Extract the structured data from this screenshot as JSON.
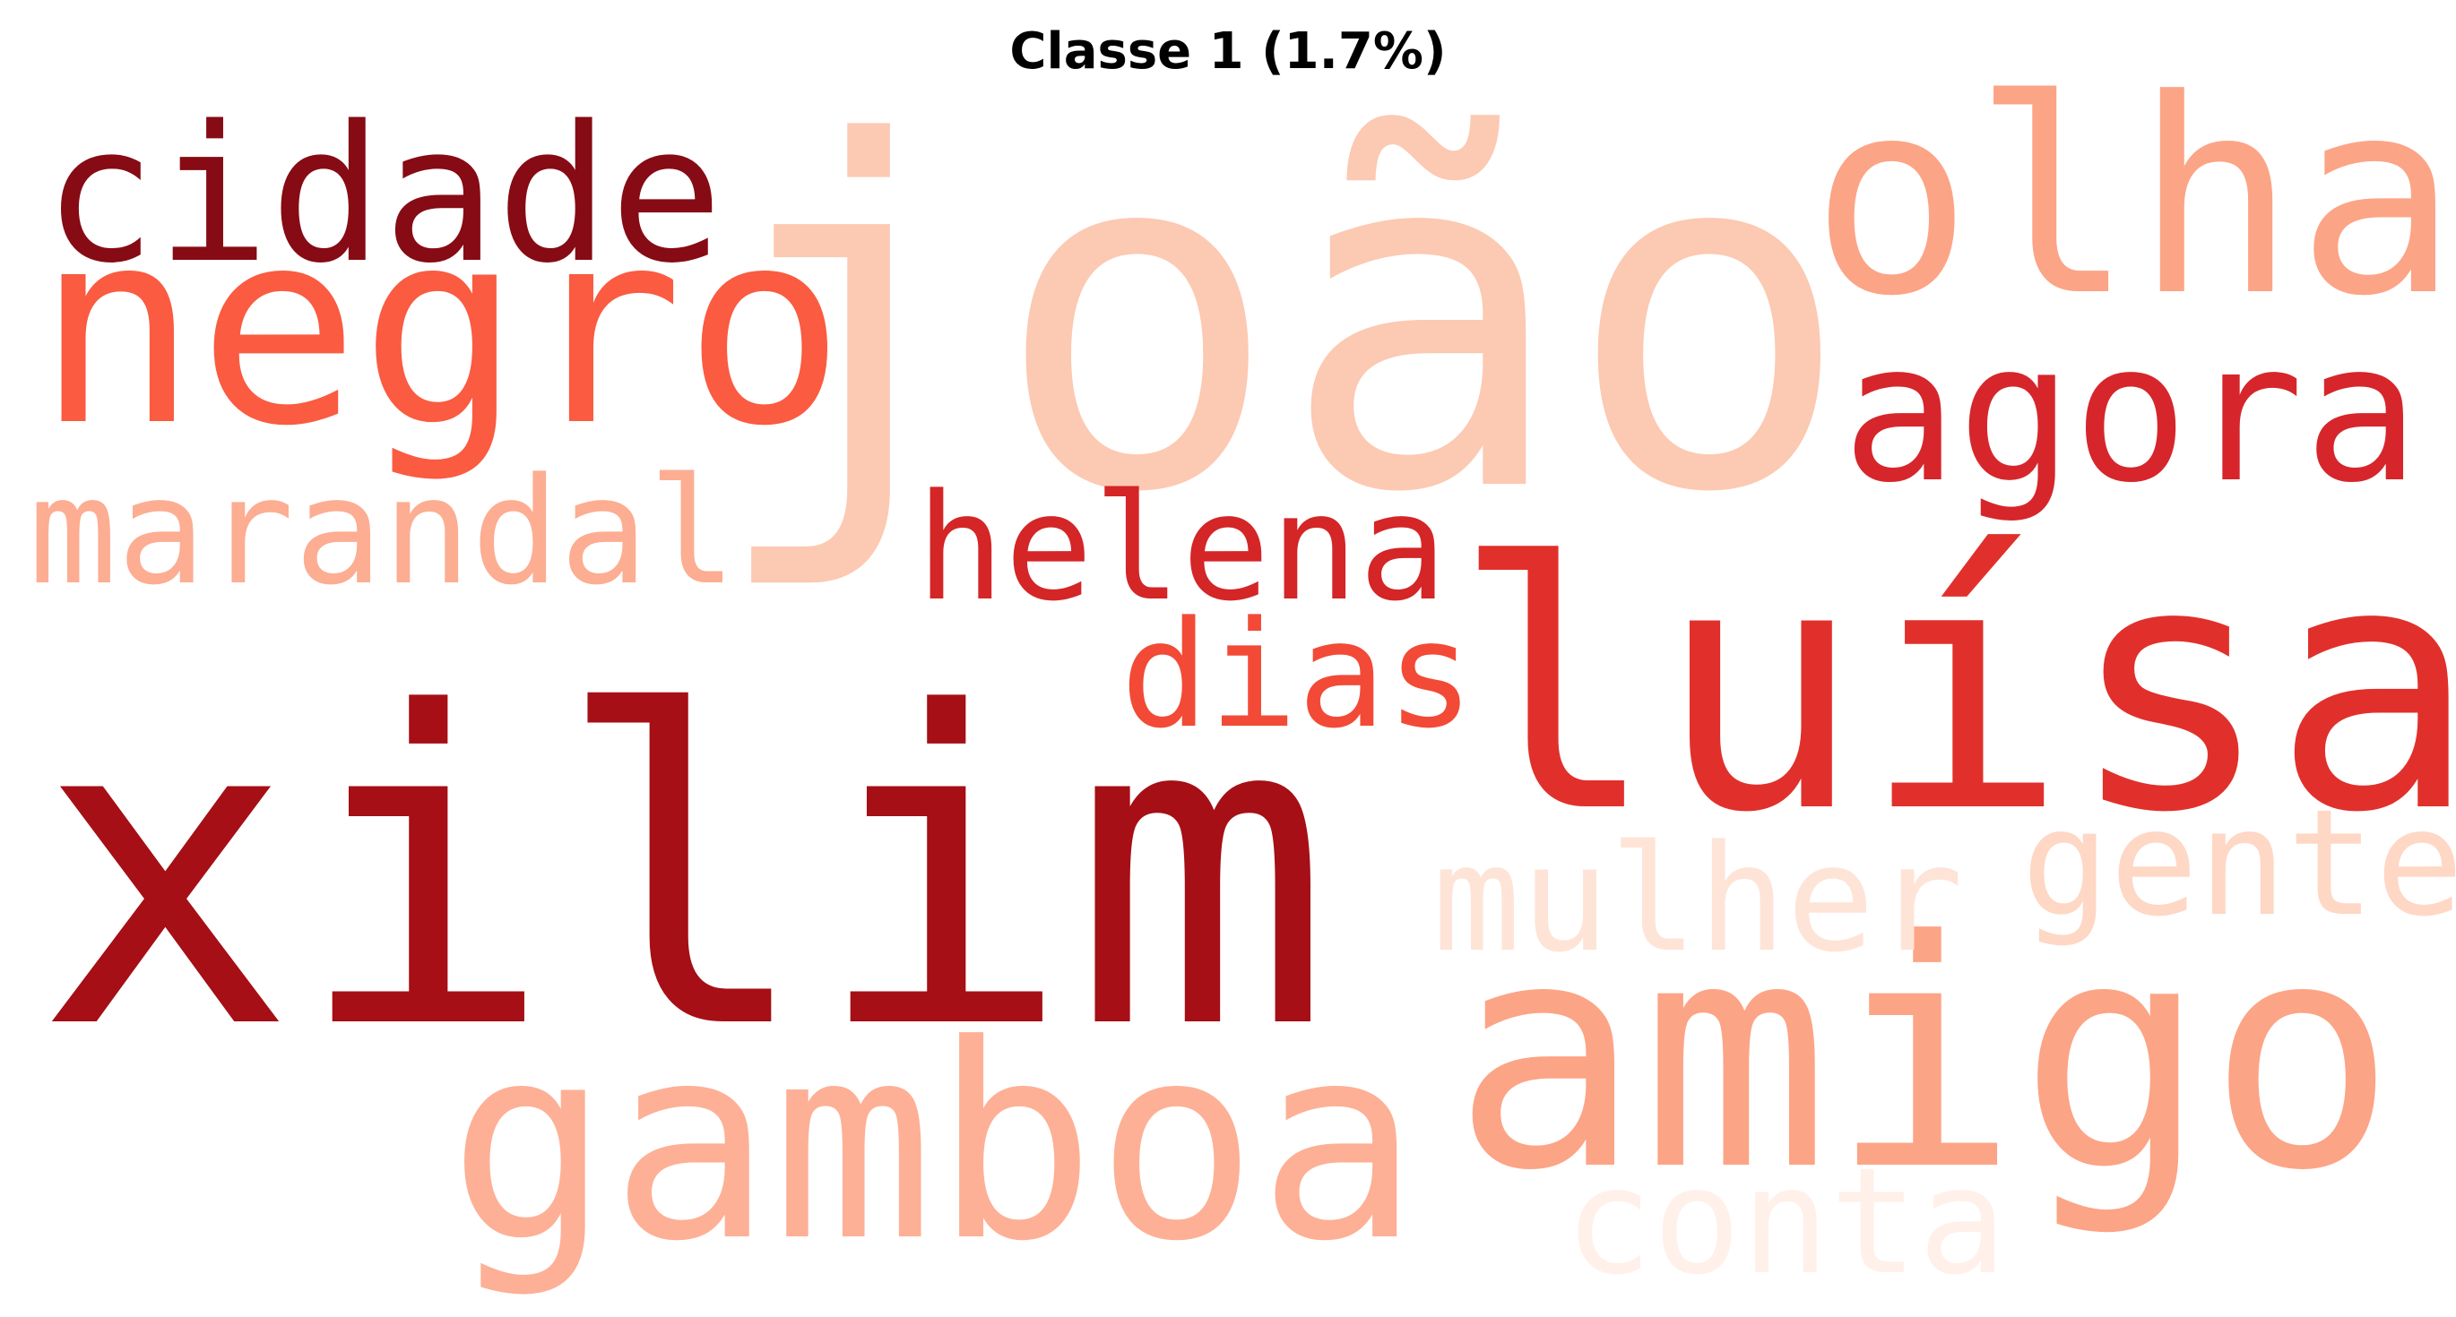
{
  "title": "Classe 1 (1.7%)",
  "words": [
    {
      "text": "joão",
      "color": "#fcc9b2"
    },
    {
      "text": "xilim",
      "color": "#a50f15"
    },
    {
      "text": "luísa",
      "color": "#e1302b"
    },
    {
      "text": "amigo",
      "color": "#fca486"
    },
    {
      "text": "gamboa",
      "color": "#fdb095"
    },
    {
      "text": "negro",
      "color": "#fa5b41"
    },
    {
      "text": "olha",
      "color": "#fca486"
    },
    {
      "text": "agora",
      "color": "#d6262b"
    },
    {
      "text": "cidade",
      "color": "#860b14"
    },
    {
      "text": "helena",
      "color": "#d42527"
    },
    {
      "text": "marandal",
      "color": "#fcad92"
    },
    {
      "text": "dias",
      "color": "#f24a36"
    },
    {
      "text": "mulher",
      "color": "#fee4d7"
    },
    {
      "text": "gente",
      "color": "#fed7c5"
    },
    {
      "text": "conta",
      "color": "#fff0e9"
    }
  ]
}
